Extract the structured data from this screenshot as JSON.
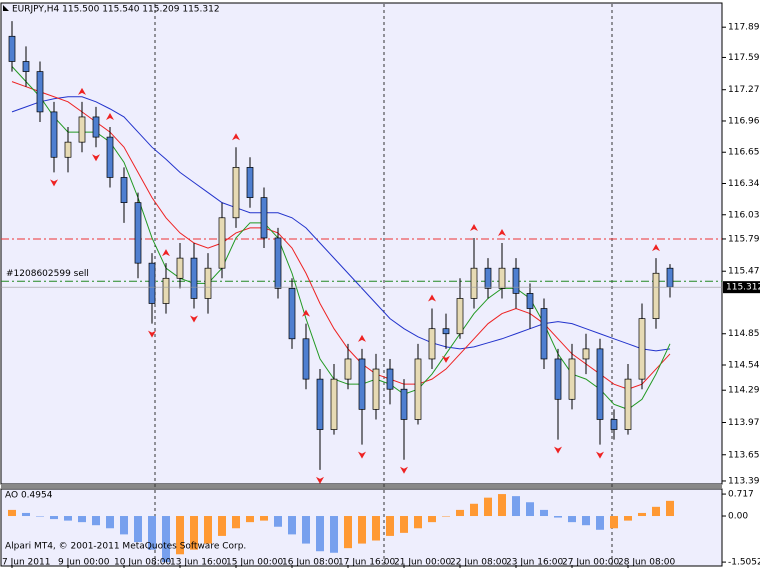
{
  "chart_data": {
    "type": "candlestick",
    "title": "EURJPY,H4  115.500 115.540 115.209 115.312",
    "categories": [
      "7 Jun 2011",
      null,
      null,
      null,
      "9 Jun 00:00",
      null,
      null,
      null,
      "10 Jun 08:00",
      null,
      null,
      null,
      "13 Jun 16:00",
      null,
      null,
      null,
      "15 Jun 00:00",
      null,
      null,
      null,
      "16 Jun 08:00",
      null,
      null,
      null,
      "17 Jun 16:00",
      null,
      null,
      null,
      "21 Jun 00:00",
      null,
      null,
      null,
      "22 Jun 08:00",
      null,
      null,
      null,
      "23 Jun 16:00",
      null,
      null,
      null,
      "27 Jun 00:00",
      null,
      null,
      null,
      "28 Jun 08:00",
      null,
      null,
      null
    ],
    "open": [
      117.8,
      117.55,
      117.45,
      117.05,
      116.6,
      116.75,
      117.0,
      116.8,
      116.4,
      116.15,
      115.55,
      115.15,
      115.4,
      115.6,
      115.2,
      115.5,
      116.0,
      116.5,
      116.2,
      115.8,
      115.3,
      114.8,
      114.4,
      113.9,
      114.4,
      114.6,
      114.1,
      114.5,
      114.3,
      114.0,
      114.6,
      114.9,
      114.85,
      115.2,
      115.5,
      115.3,
      115.5,
      115.25,
      115.1,
      114.6,
      114.2,
      114.6,
      114.7,
      114.0,
      113.9,
      114.4,
      115.0,
      115.5
    ],
    "high": [
      117.95,
      117.7,
      117.55,
      117.15,
      116.9,
      117.15,
      117.1,
      116.9,
      116.5,
      116.25,
      115.65,
      115.55,
      115.75,
      115.75,
      115.65,
      116.15,
      116.7,
      116.6,
      116.3,
      115.9,
      115.4,
      114.95,
      114.5,
      114.55,
      114.75,
      114.7,
      114.65,
      114.6,
      114.4,
      114.75,
      115.1,
      115.05,
      115.4,
      115.8,
      115.6,
      115.75,
      115.6,
      115.35,
      115.2,
      114.7,
      114.75,
      114.85,
      114.8,
      114.1,
      114.55,
      115.15,
      115.6,
      115.54
    ],
    "low": [
      117.45,
      117.3,
      116.95,
      116.45,
      116.45,
      116.65,
      116.7,
      116.3,
      115.95,
      115.4,
      114.95,
      115.05,
      115.3,
      115.1,
      115.05,
      115.4,
      115.9,
      116.1,
      115.7,
      115.2,
      114.7,
      114.3,
      113.5,
      113.85,
      114.3,
      113.75,
      114.0,
      114.15,
      113.6,
      113.95,
      114.5,
      114.7,
      114.8,
      115.1,
      115.2,
      115.2,
      115.1,
      114.9,
      114.5,
      113.8,
      114.1,
      114.45,
      113.75,
      113.8,
      113.85,
      114.3,
      114.9,
      115.209
    ],
    "close": [
      117.55,
      117.45,
      117.05,
      116.6,
      116.75,
      117.0,
      116.8,
      116.4,
      116.15,
      115.55,
      115.15,
      115.4,
      115.6,
      115.2,
      115.5,
      116.0,
      116.5,
      116.2,
      115.8,
      115.3,
      114.8,
      114.4,
      113.9,
      114.4,
      114.6,
      114.1,
      114.5,
      114.3,
      114.0,
      114.6,
      114.9,
      114.85,
      115.2,
      115.5,
      115.3,
      115.5,
      115.25,
      115.1,
      114.6,
      114.2,
      114.6,
      114.7,
      114.0,
      113.9,
      114.4,
      115.0,
      115.45,
      115.312
    ],
    "up_color": "#e6dab4",
    "down_color": "#4f7fd0",
    "lines": [
      {
        "color": "#2233cc",
        "values": [
          117.05,
          117.1,
          117.15,
          117.18,
          117.2,
          117.2,
          117.15,
          117.08,
          117.0,
          116.85,
          116.7,
          116.58,
          116.45,
          116.35,
          116.25,
          116.15,
          116.1,
          116.05,
          116.05,
          116.05,
          116.0,
          115.9,
          115.75,
          115.6,
          115.45,
          115.3,
          115.15,
          115.0,
          114.9,
          114.82,
          114.76,
          114.72,
          114.7,
          114.72,
          114.76,
          114.8,
          114.85,
          114.9,
          114.95,
          114.97,
          114.95,
          114.9,
          114.85,
          114.8,
          114.75,
          114.7,
          114.68,
          114.7
        ]
      },
      {
        "color": "#ee2222",
        "values": [
          117.35,
          117.3,
          117.25,
          117.2,
          117.15,
          117.05,
          116.95,
          116.85,
          116.7,
          116.45,
          116.2,
          116.0,
          115.85,
          115.75,
          115.7,
          115.75,
          115.85,
          115.9,
          115.9,
          115.85,
          115.7,
          115.45,
          115.15,
          114.9,
          114.7,
          114.55,
          114.45,
          114.4,
          114.35,
          114.35,
          114.4,
          114.5,
          114.65,
          114.8,
          114.95,
          115.05,
          115.1,
          115.05,
          114.95,
          114.8,
          114.65,
          114.55,
          114.45,
          114.35,
          114.3,
          114.35,
          114.5,
          114.65
        ]
      },
      {
        "color": "#229922",
        "values": [
          117.5,
          117.35,
          117.2,
          117.0,
          116.85,
          116.85,
          116.85,
          116.75,
          116.55,
          116.2,
          115.8,
          115.5,
          115.4,
          115.35,
          115.35,
          115.5,
          115.8,
          115.95,
          115.95,
          115.8,
          115.45,
          115.0,
          114.6,
          114.4,
          114.35,
          114.35,
          114.4,
          114.35,
          114.25,
          114.3,
          114.45,
          114.65,
          114.85,
          115.05,
          115.2,
          115.3,
          115.3,
          115.2,
          114.95,
          114.65,
          114.45,
          114.4,
          114.3,
          114.15,
          114.1,
          114.2,
          114.45,
          114.75
        ]
      }
    ],
    "fractals": {
      "color": "#ee2222",
      "up": [
        null,
        null,
        null,
        null,
        null,
        117.15,
        null,
        116.9,
        null,
        null,
        null,
        115.55,
        null,
        null,
        null,
        null,
        116.7,
        null,
        null,
        null,
        null,
        114.95,
        null,
        null,
        null,
        114.7,
        null,
        null,
        null,
        null,
        115.1,
        null,
        null,
        115.8,
        null,
        115.75,
        null,
        null,
        null,
        null,
        null,
        null,
        null,
        null,
        null,
        null,
        115.6,
        null
      ],
      "down": [
        null,
        null,
        null,
        116.45,
        null,
        null,
        116.7,
        null,
        null,
        null,
        114.95,
        null,
        null,
        115.1,
        null,
        null,
        null,
        null,
        null,
        null,
        null,
        null,
        113.5,
        null,
        null,
        113.75,
        null,
        null,
        113.6,
        null,
        null,
        114.7,
        null,
        null,
        null,
        null,
        null,
        null,
        null,
        113.8,
        null,
        null,
        113.75,
        null,
        null,
        null,
        null,
        null
      ]
    },
    "levels": [
      {
        "value": 115.79,
        "color": "#ee3333"
      },
      {
        "value": 115.37,
        "color": "#228822",
        "label": "#1208602599 sell"
      }
    ],
    "last_price": {
      "value": 115.312,
      "label": "115.312"
    },
    "ylim": [
      113.36,
      118.12
    ],
    "yticks": [
      {
        "value": 117.89,
        "label": "117.890"
      },
      {
        "value": 117.59,
        "label": "117.590"
      },
      {
        "value": 117.27,
        "label": "117.270"
      },
      {
        "value": 116.96,
        "label": "116.960"
      },
      {
        "value": 116.65,
        "label": "116.650"
      },
      {
        "value": 116.34,
        "label": "116.340"
      },
      {
        "value": 116.03,
        "label": "116.030"
      },
      {
        "value": 115.79,
        "label": "115.790"
      },
      {
        "value": 115.47,
        "label": "115.470"
      },
      {
        "value": 114.85,
        "label": "114.850"
      },
      {
        "value": 114.54,
        "label": "114.540"
      },
      {
        "value": 114.29,
        "label": "114.290"
      },
      {
        "value": 113.97,
        "label": "113.970"
      },
      {
        "value": 113.65,
        "label": "113.650"
      },
      {
        "value": 113.39,
        "label": "113.390"
      }
    ],
    "ao": {
      "type": "bar",
      "title": "AO 0.4954",
      "values": [
        0.2,
        0.1,
        0.0,
        -0.1,
        -0.15,
        -0.2,
        -0.3,
        -0.4,
        -0.6,
        -0.85,
        -1.1,
        -1.5052,
        -1.25,
        -1.1,
        -0.9,
        -0.65,
        -0.4,
        -0.2,
        -0.15,
        -0.35,
        -0.6,
        -0.9,
        -1.15,
        -1.2,
        -1.05,
        -0.9,
        -0.8,
        -0.65,
        -0.55,
        -0.4,
        -0.2,
        0.0,
        0.2,
        0.4,
        0.6,
        0.717,
        0.65,
        0.45,
        0.2,
        -0.05,
        -0.2,
        -0.3,
        -0.45,
        -0.4,
        -0.15,
        0.1,
        0.3,
        0.4954
      ],
      "up_color": "#ff9933",
      "down_color": "#77a0ee",
      "ylim": [
        -1.6,
        0.85
      ],
      "yticks": [
        {
          "value": 0.717,
          "label": "0.717"
        },
        {
          "value": 0,
          "label": "0.00"
        },
        {
          "value": -1.5052,
          "label": "-1.5052"
        }
      ]
    },
    "footer": "Alpari MT4, © 2001-2011 MetaQuotes Software Corp."
  }
}
